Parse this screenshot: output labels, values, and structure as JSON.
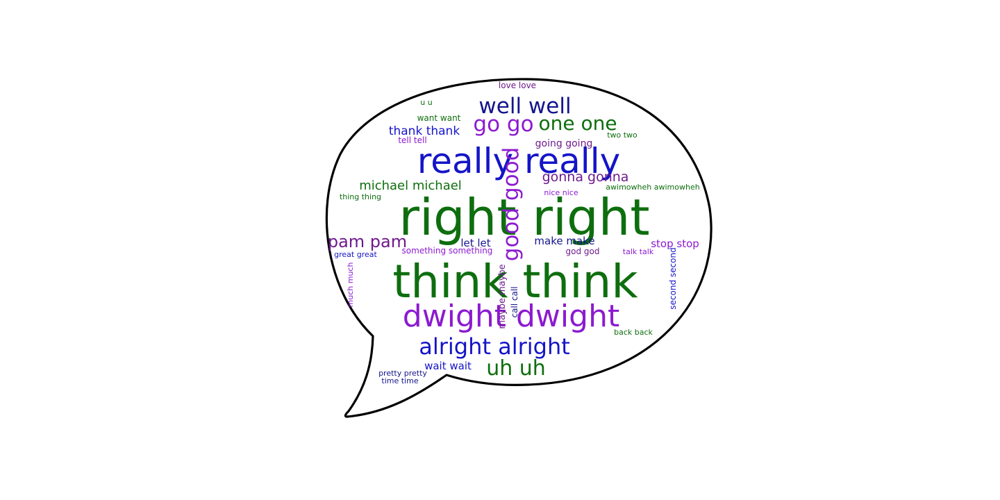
{
  "colors": {
    "green": "#0e6e0e",
    "blue": "#1414c8",
    "purple": "#8c1ad0",
    "navy": "#14148c",
    "plum": "#6e1a8c",
    "outline": "#000000",
    "background": "#ffffff"
  },
  "words": [
    {
      "text": "right right",
      "color": "green"
    },
    {
      "text": "think think",
      "color": "green"
    },
    {
      "text": "really really",
      "color": "blue"
    },
    {
      "text": "dwight dwight",
      "color": "purple"
    },
    {
      "text": "alright alright",
      "color": "blue"
    },
    {
      "text": "well well",
      "color": "navy"
    },
    {
      "text": "good good",
      "color": "purple"
    },
    {
      "text": "go go",
      "color": "purple"
    },
    {
      "text": "one one",
      "color": "green"
    },
    {
      "text": "uh uh",
      "color": "green"
    },
    {
      "text": "pam pam",
      "color": "plum"
    },
    {
      "text": "gonna gonna",
      "color": "plum"
    },
    {
      "text": "michael michael",
      "color": "green"
    },
    {
      "text": "thank thank",
      "color": "blue"
    },
    {
      "text": "let let",
      "color": "navy"
    },
    {
      "text": "make make",
      "color": "navy"
    },
    {
      "text": "stop stop",
      "color": "purple"
    },
    {
      "text": "wait wait",
      "color": "blue"
    },
    {
      "text": "going going",
      "color": "plum"
    },
    {
      "text": "something something",
      "color": "purple"
    },
    {
      "text": "god god",
      "color": "plum"
    },
    {
      "text": "want want",
      "color": "green"
    },
    {
      "text": "tell tell",
      "color": "purple"
    },
    {
      "text": "love love",
      "color": "plum"
    },
    {
      "text": "u u",
      "color": "green"
    },
    {
      "text": "two two",
      "color": "green"
    },
    {
      "text": "nice nice",
      "color": "purple"
    },
    {
      "text": "awimowheh awimowheh",
      "color": "green"
    },
    {
      "text": "thing thing",
      "color": "green"
    },
    {
      "text": "great great",
      "color": "blue"
    },
    {
      "text": "talk talk",
      "color": "purple"
    },
    {
      "text": "much much",
      "color": "purple"
    },
    {
      "text": "maybe maybe",
      "color": "plum"
    },
    {
      "text": "call call",
      "color": "navy"
    },
    {
      "text": "second second",
      "color": "blue"
    },
    {
      "text": "back back",
      "color": "green"
    },
    {
      "text": "pretty pretty",
      "color": "navy"
    },
    {
      "text": "time time",
      "color": "navy"
    }
  ]
}
